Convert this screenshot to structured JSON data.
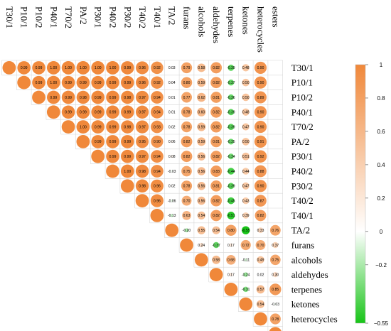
{
  "chart_data": {
    "type": "heatmap",
    "variables": [
      "T30/1",
      "P10/1",
      "P10/2",
      "P40/1",
      "T70/2",
      "PA/2",
      "P30/1",
      "P40/2",
      "P30/2",
      "T40/2",
      "T40/1",
      "TA/2",
      "furans",
      "alcohols",
      "aldehydes",
      "terpenes",
      "ketones",
      "heterocycles",
      "esters"
    ],
    "upper_triangle": [
      [
        0.99,
        0.99,
        1.0,
        1.0,
        1.0,
        1.0,
        1.0,
        0.99,
        0.96,
        0.92,
        0.03,
        0.79,
        0.58,
        0.82,
        -0.39,
        0.48,
        0.9
      ],
      [
        0.99,
        1.0,
        0.99,
        0.99,
        0.99,
        0.99,
        0.99,
        0.96,
        0.92,
        0.04,
        0.8,
        0.59,
        0.82,
        -0.37,
        0.5,
        0.9
      ],
      [
        0.99,
        0.99,
        0.98,
        0.99,
        0.99,
        0.98,
        0.97,
        0.94,
        0.01,
        0.77,
        0.62,
        0.81,
        -0.36,
        0.5,
        0.89
      ],
      [
        0.99,
        0.99,
        0.99,
        0.99,
        0.99,
        0.97,
        0.94,
        0.01,
        0.78,
        0.6,
        0.82,
        -0.39,
        0.48,
        0.9
      ],
      [
        1.0,
        0.99,
        0.99,
        0.98,
        0.97,
        0.93,
        0.02,
        0.78,
        0.59,
        0.82,
        -0.39,
        0.47,
        0.9
      ],
      [
        0.99,
        0.99,
        0.99,
        0.95,
        0.9,
        0.06,
        0.82,
        0.59,
        0.81,
        -0.35,
        0.5,
        0.91
      ],
      [
        0.99,
        0.99,
        0.97,
        0.94,
        0.08,
        0.82,
        0.56,
        0.82,
        -0.34,
        0.51,
        0.92
      ],
      [
        1.0,
        0.98,
        0.94,
        -0.03,
        0.75,
        0.56,
        0.83,
        -0.44,
        0.44,
        0.88
      ],
      [
        0.98,
        0.96,
        0.02,
        0.78,
        0.56,
        0.81,
        -0.39,
        0.47,
        0.9
      ],
      [
        0.96,
        -0.06,
        0.7,
        0.56,
        0.82,
        -0.45,
        0.43,
        0.87
      ],
      [
        -0.13,
        0.63,
        0.54,
        0.82,
        -0.51,
        0.39,
        0.82
      ],
      [
        -0.2,
        0.55,
        0.54,
        0.8,
        -0.55,
        0.33,
        0.76
      ],
      [
        0.24,
        -0.37,
        0.17,
        0.72,
        0.7,
        0.37
      ],
      [
        0.58,
        0.68,
        -0.11,
        0.49,
        0.75
      ],
      [
        0.17,
        -0.24,
        0.02,
        0.3
      ],
      [
        -0.31,
        0.57,
        0.85
      ],
      [
        0.54,
        -0.03
      ],
      [
        0.78
      ],
      []
    ],
    "colorbar": {
      "min": -0.55,
      "max": 1,
      "ticks": [
        1,
        0.8,
        0.6,
        0.4,
        0.2,
        0,
        -0.2,
        -0.55
      ],
      "tick_labels": [
        "1",
        "0.8",
        "0.6",
        "0.4",
        "0.2",
        "0",
        "−0.2",
        "−0.55"
      ],
      "colors": {
        "high": "#f0883a",
        "mid": "#ffffff",
        "low": "#18c418"
      }
    },
    "grid": true
  }
}
